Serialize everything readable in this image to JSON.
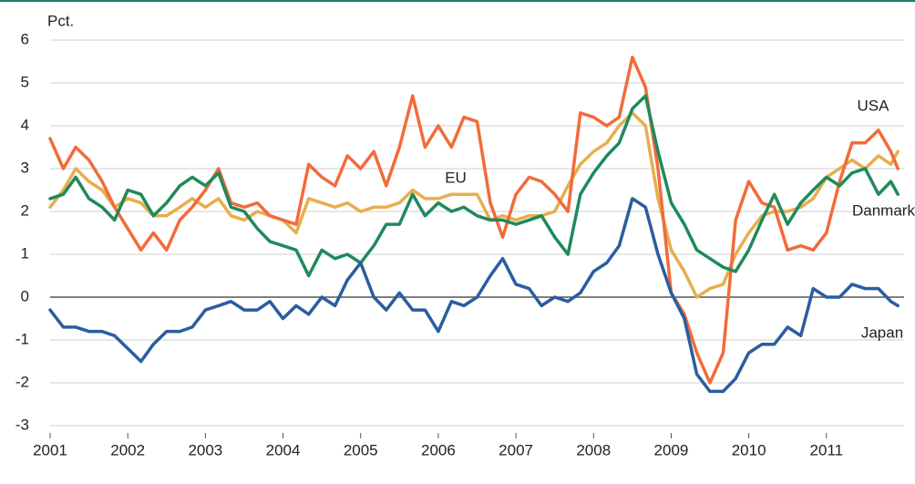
{
  "chart_data": {
    "type": "line",
    "ylabel": "Pct.",
    "annotations": [
      "USA",
      "EU",
      "Danmark",
      "Japan"
    ],
    "x": [
      2001,
      2001.17,
      2001.33,
      2001.5,
      2001.67,
      2001.83,
      2002,
      2002.17,
      2002.33,
      2002.5,
      2002.67,
      2002.83,
      2003,
      2003.17,
      2003.33,
      2003.5,
      2003.67,
      2003.83,
      2004,
      2004.17,
      2004.33,
      2004.5,
      2004.67,
      2004.83,
      2005,
      2005.17,
      2005.33,
      2005.5,
      2005.67,
      2005.83,
      2006,
      2006.17,
      2006.33,
      2006.5,
      2006.67,
      2006.83,
      2007,
      2007.17,
      2007.33,
      2007.5,
      2007.67,
      2007.83,
      2008,
      2008.17,
      2008.33,
      2008.5,
      2008.67,
      2008.83,
      2009,
      2009.17,
      2009.33,
      2009.5,
      2009.67,
      2009.83,
      2010,
      2010.17,
      2010.33,
      2010.5,
      2010.67,
      2010.83,
      2011,
      2011.17,
      2011.33,
      2011.5,
      2011.67,
      2011.83,
      2011.92
    ],
    "series": [
      {
        "name": "EU",
        "color": "#e8ae4c",
        "values": [
          2.1,
          2.5,
          3.0,
          2.7,
          2.5,
          2.1,
          2.3,
          2.2,
          1.9,
          1.9,
          2.1,
          2.3,
          2.1,
          2.3,
          1.9,
          1.8,
          2.0,
          1.9,
          1.8,
          1.5,
          2.3,
          2.2,
          2.1,
          2.2,
          2.0,
          2.1,
          2.1,
          2.2,
          2.5,
          2.3,
          2.3,
          2.4,
          2.4,
          2.4,
          1.8,
          1.9,
          1.8,
          1.9,
          1.9,
          2.0,
          2.6,
          3.1,
          3.4,
          3.6,
          4.0,
          4.3,
          4.0,
          2.3,
          1.1,
          0.6,
          0.0,
          0.2,
          0.3,
          1.0,
          1.5,
          1.9,
          2.0,
          2.0,
          2.1,
          2.3,
          2.8,
          3.0,
          3.2,
          3.0,
          3.3,
          3.1,
          3.4
        ]
      },
      {
        "name": "USA",
        "color": "#f26b3a",
        "values": [
          3.7,
          3.0,
          3.5,
          3.2,
          2.7,
          2.1,
          1.6,
          1.1,
          1.5,
          1.1,
          1.8,
          2.1,
          2.5,
          3.0,
          2.2,
          2.1,
          2.2,
          1.9,
          1.8,
          1.7,
          3.1,
          2.8,
          2.6,
          3.3,
          3.0,
          3.4,
          2.6,
          3.5,
          4.7,
          3.5,
          4.0,
          3.5,
          4.2,
          4.1,
          2.2,
          1.4,
          2.4,
          2.8,
          2.7,
          2.4,
          2.0,
          4.3,
          4.2,
          4.0,
          4.2,
          5.6,
          4.9,
          3.0,
          0.1,
          -0.4,
          -1.3,
          -2.0,
          -1.3,
          1.8,
          2.7,
          2.2,
          2.1,
          1.1,
          1.2,
          1.1,
          1.5,
          2.7,
          3.6,
          3.6,
          3.9,
          3.4,
          3.0
        ]
      },
      {
        "name": "Danmark",
        "color": "#1f8a5b",
        "values": [
          2.3,
          2.4,
          2.8,
          2.3,
          2.1,
          1.8,
          2.5,
          2.4,
          1.9,
          2.2,
          2.6,
          2.8,
          2.6,
          2.9,
          2.1,
          2.0,
          1.6,
          1.3,
          1.2,
          1.1,
          0.5,
          1.1,
          0.9,
          1.0,
          0.8,
          1.2,
          1.7,
          1.7,
          2.4,
          1.9,
          2.2,
          2.0,
          2.1,
          1.9,
          1.8,
          1.8,
          1.7,
          1.8,
          1.9,
          1.4,
          1.0,
          2.4,
          2.9,
          3.3,
          3.6,
          4.4,
          4.7,
          3.4,
          2.2,
          1.7,
          1.1,
          0.9,
          0.7,
          0.6,
          1.1,
          1.8,
          2.4,
          1.7,
          2.2,
          2.5,
          2.8,
          2.6,
          2.9,
          3.0,
          2.4,
          2.7,
          2.4
        ]
      },
      {
        "name": "Japan",
        "color": "#2a5d9f",
        "values": [
          -0.3,
          -0.7,
          -0.7,
          -0.8,
          -0.8,
          -0.9,
          -1.2,
          -1.5,
          -1.1,
          -0.8,
          -0.8,
          -0.7,
          -0.3,
          -0.2,
          -0.1,
          -0.3,
          -0.3,
          -0.1,
          -0.5,
          -0.2,
          -0.4,
          0.0,
          -0.2,
          0.4,
          0.8,
          0.0,
          -0.3,
          0.1,
          -0.3,
          -0.3,
          -0.8,
          -0.1,
          -0.2,
          0.0,
          0.5,
          0.9,
          0.3,
          0.2,
          -0.2,
          0.0,
          -0.1,
          0.1,
          0.6,
          0.8,
          1.2,
          2.3,
          2.1,
          1.0,
          0.1,
          -0.5,
          -1.8,
          -2.2,
          -2.2,
          -1.9,
          -1.3,
          -1.1,
          -1.1,
          -0.7,
          -0.9,
          0.2,
          0.0,
          0.0,
          0.3,
          0.2,
          0.2,
          -0.1,
          -0.2
        ]
      }
    ],
    "xlim": [
      2001,
      2012
    ],
    "xticks": [
      2001,
      2002,
      2003,
      2004,
      2005,
      2006,
      2007,
      2008,
      2009,
      2010,
      2011
    ],
    "ylim": [
      -3,
      6
    ],
    "yticks": [
      -3,
      -2,
      -1,
      0,
      1,
      2,
      3,
      4,
      5,
      6
    ],
    "grid": true
  }
}
